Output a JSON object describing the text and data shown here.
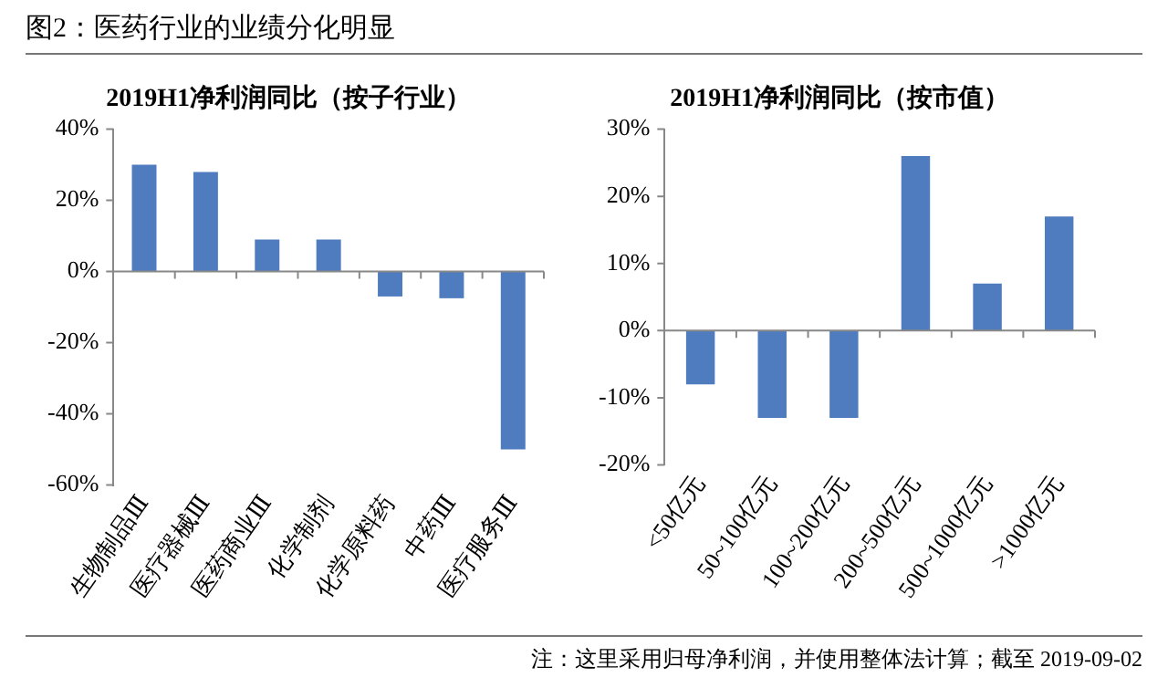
{
  "chart_data": [
    {
      "type": "bar",
      "title": "2019H1净利润同比（按子行业）",
      "categories": [
        "生物制品Ⅲ",
        "医疗器械Ⅲ",
        "医药商业Ⅲ",
        "化学制剂",
        "化学原料药",
        "中药Ⅲ",
        "医疗服务Ⅲ"
      ],
      "values": [
        30,
        28,
        9,
        9,
        -7,
        -7.5,
        -50
      ],
      "color": "#4f7bbf",
      "ylim": [
        -60,
        40
      ],
      "yticks": [
        {
          "value": -60,
          "label": "-60%"
        },
        {
          "value": -40,
          "label": "-40%"
        },
        {
          "value": -20,
          "label": "-20%"
        },
        {
          "value": 0,
          "label": "0%"
        },
        {
          "value": 20,
          "label": "20%"
        },
        {
          "value": 40,
          "label": "40%"
        }
      ],
      "legend": false,
      "annotations": [
        "图2：医药行业的业绩分化明显"
      ]
    },
    {
      "type": "bar",
      "title": "2019H1净利润同比（按市值）",
      "categories": [
        "<50亿元",
        "50~100亿元",
        "100~200亿元",
        "200~500亿元",
        "500~1000亿元",
        ">1000亿元"
      ],
      "values": [
        -8,
        -13,
        -13,
        26,
        7,
        17
      ],
      "color": "#4f7bbf",
      "ylim": [
        -20,
        30
      ],
      "yticks": [
        {
          "value": -20,
          "label": "-20%"
        },
        {
          "value": -10,
          "label": "-10%"
        },
        {
          "value": 0,
          "label": "0%"
        },
        {
          "value": 10,
          "label": "10%"
        },
        {
          "value": 20,
          "label": "20%"
        },
        {
          "value": 30,
          "label": "30%"
        }
      ],
      "legend": false,
      "annotations": [
        "注：这里采用归母净利润，并使用整体法计算；截至 2019-09-02"
      ]
    }
  ]
}
